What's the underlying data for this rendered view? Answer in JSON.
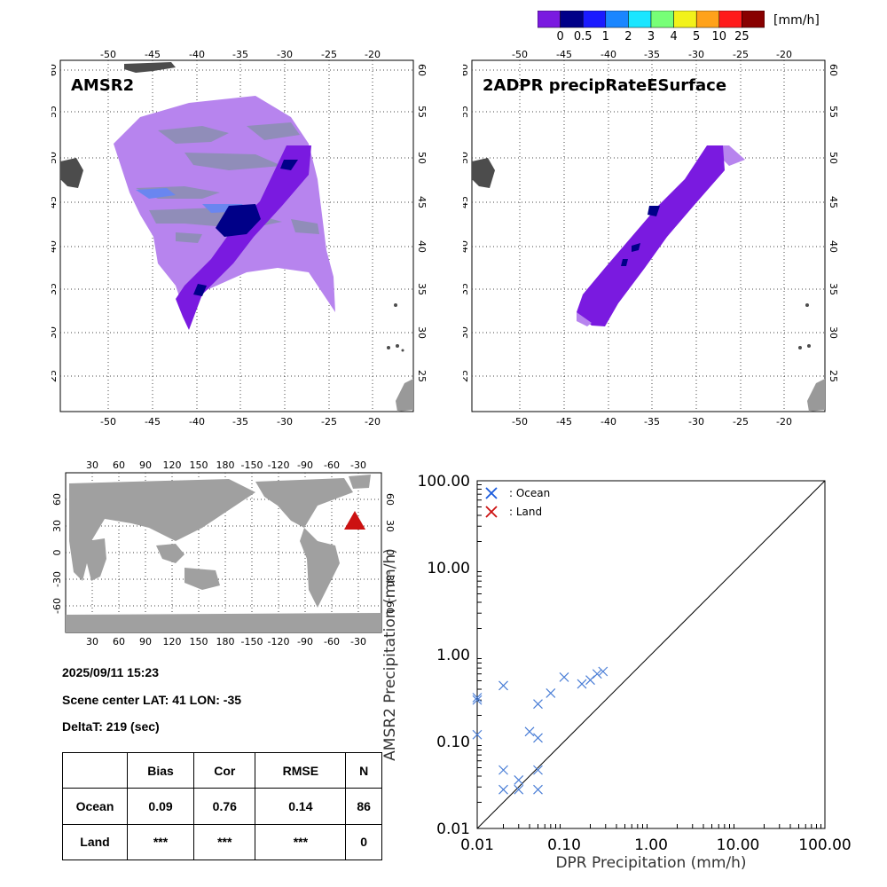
{
  "colorbar": {
    "unit": "[mm/h]",
    "colors": [
      "#7a1ae0",
      "#000088",
      "#1a1aff",
      "#1a86ff",
      "#1ae6ff",
      "#77ff77",
      "#f2f21a",
      "#ffa21a",
      "#ff1a1a",
      "#880000"
    ],
    "labels": [
      "0",
      "0.5",
      "1",
      "2",
      "3",
      "4",
      "5",
      "10",
      "25"
    ]
  },
  "maps": {
    "left": {
      "title": "AMSR2"
    },
    "right": {
      "title": "2ADPR precipRateESurface"
    },
    "lon_ticks": [
      "-50",
      "-45",
      "-40",
      "-35",
      "-30",
      "-25",
      "-20"
    ],
    "lat_ticks": [
      "60",
      "55",
      "50",
      "45",
      "40",
      "35",
      "30",
      "25"
    ]
  },
  "globe": {
    "lon_ticks": [
      "30",
      "60",
      "90",
      "120",
      "150",
      "180",
      "-150",
      "-120",
      "-90",
      "-60",
      "-30"
    ],
    "lat_ticks": [
      "60",
      "30",
      "0",
      "-30",
      "-60"
    ],
    "marker_color": "#cc1111"
  },
  "scene": {
    "datetime": "2025/09/11 15:23",
    "center": "Scene center LAT: 41   LON: -35",
    "delta": "DeltaT:  219 (sec)"
  },
  "stats": {
    "headers": [
      "Bias",
      "Cor",
      "RMSE",
      "N"
    ],
    "rows": [
      {
        "label": "Ocean",
        "values": [
          "0.09",
          "0.76",
          "0.14",
          "86"
        ]
      },
      {
        "label": "Land",
        "values": [
          "***",
          "***",
          "***",
          "0"
        ]
      }
    ]
  },
  "chart_data": {
    "type": "scatter",
    "xlabel": "DPR Precipitation (mm/h)",
    "ylabel": "AMSR2 Precipitation (mm/h)",
    "xscale": "log",
    "yscale": "log",
    "xlim": [
      0.01,
      100
    ],
    "ylim": [
      0.01,
      100
    ],
    "tick_labels": [
      "0.01",
      "0.10",
      "1.00",
      "10.00",
      "100.00"
    ],
    "legend": [
      {
        "name": ": Ocean",
        "color": "#1a5adc"
      },
      {
        "name": ": Land",
        "color": "#cc1111"
      }
    ],
    "series": [
      {
        "name": "Ocean",
        "color": "#4a7ed6",
        "points": [
          [
            0.01,
            0.32
          ],
          [
            0.01,
            0.3
          ],
          [
            0.01,
            0.12
          ],
          [
            0.02,
            0.44
          ],
          [
            0.02,
            0.047
          ],
          [
            0.02,
            0.028
          ],
          [
            0.03,
            0.036
          ],
          [
            0.03,
            0.028
          ],
          [
            0.04,
            0.13
          ],
          [
            0.05,
            0.27
          ],
          [
            0.05,
            0.11
          ],
          [
            0.05,
            0.047
          ],
          [
            0.05,
            0.028
          ],
          [
            0.07,
            0.36
          ],
          [
            0.1,
            0.55
          ],
          [
            0.16,
            0.46
          ],
          [
            0.2,
            0.51
          ],
          [
            0.24,
            0.6
          ],
          [
            0.28,
            0.64
          ]
        ]
      },
      {
        "name": "Land",
        "color": "#cc1111",
        "points": []
      }
    ],
    "reference_line": "1:1"
  }
}
